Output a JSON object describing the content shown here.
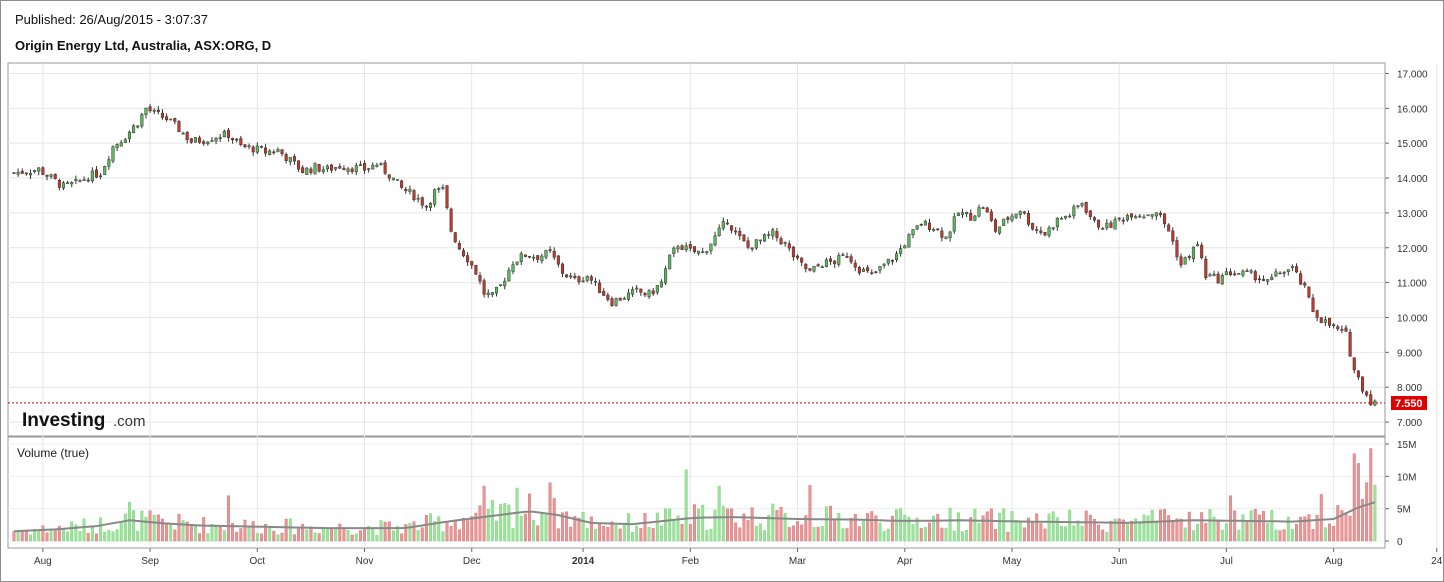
{
  "header": {
    "published": "Published: 26/Aug/2015 - 3:07:37",
    "title": "Origin Energy Ltd, Australia, ASX:ORG, D"
  },
  "logo": {
    "brand": "Investing",
    "suffix": ".com"
  },
  "volume_label": "Volume (true)",
  "current_price": "7.550",
  "colors": {
    "up": "#5cb85c",
    "down": "#c0392b",
    "vol_up": "#9be39b",
    "vol_down": "#e89696",
    "price_line": "#cc0000",
    "ma": "#888888"
  },
  "chart_data": {
    "type": "candlestick",
    "price_axis": {
      "ylim": [
        6.6,
        17.3
      ],
      "ticks": [
        "7.000",
        "8.000",
        "9.000",
        "10.000",
        "11.000",
        "12.000",
        "13.000",
        "14.000",
        "15.000",
        "16.000",
        "17.000"
      ]
    },
    "volume_axis": {
      "ylim": [
        0,
        15
      ],
      "unit": "M",
      "ticks": [
        "0",
        "5M",
        "10M",
        "15M"
      ]
    },
    "x_labels": [
      {
        "label": "Aug",
        "bold": false
      },
      {
        "label": "Sep",
        "bold": false
      },
      {
        "label": "Oct",
        "bold": false
      },
      {
        "label": "Nov",
        "bold": false
      },
      {
        "label": "Dec",
        "bold": false
      },
      {
        "label": "2014",
        "bold": true
      },
      {
        "label": "Feb",
        "bold": false
      },
      {
        "label": "Mar",
        "bold": false
      },
      {
        "label": "Apr",
        "bold": false
      },
      {
        "label": "May",
        "bold": false
      },
      {
        "label": "Jun",
        "bold": false
      },
      {
        "label": "Jul",
        "bold": false
      },
      {
        "label": "Aug",
        "bold": false
      },
      {
        "label": "24",
        "bold": false
      }
    ],
    "x_label_bar_index": [
      7,
      33,
      59,
      85,
      111,
      138,
      164,
      190,
      216,
      242,
      268,
      294,
      320,
      345
    ],
    "close_path": [
      [
        0,
        14.15
      ],
      [
        3,
        14.2
      ],
      [
        6,
        14.25
      ],
      [
        9,
        14.0
      ],
      [
        12,
        13.75
      ],
      [
        15,
        13.85
      ],
      [
        18,
        14.05
      ],
      [
        21,
        14.15
      ],
      [
        24,
        14.9
      ],
      [
        27,
        15.2
      ],
      [
        30,
        15.6
      ],
      [
        32,
        16.0
      ],
      [
        34,
        15.85
      ],
      [
        37,
        15.7
      ],
      [
        40,
        15.4
      ],
      [
        43,
        15.05
      ],
      [
        46,
        15.1
      ],
      [
        49,
        15.2
      ],
      [
        52,
        15.25
      ],
      [
        55,
        14.9
      ],
      [
        58,
        14.85
      ],
      [
        61,
        14.75
      ],
      [
        64,
        14.8
      ],
      [
        67,
        14.5
      ],
      [
        70,
        14.2
      ],
      [
        73,
        14.3
      ],
      [
        76,
        14.25
      ],
      [
        79,
        14.35
      ],
      [
        82,
        14.3
      ],
      [
        85,
        14.25
      ],
      [
        88,
        14.4
      ],
      [
        91,
        14.1
      ],
      [
        94,
        13.7
      ],
      [
        97,
        13.5
      ],
      [
        100,
        13.2
      ],
      [
        102,
        13.6
      ],
      [
        104,
        13.65
      ],
      [
        106,
        12.5
      ],
      [
        108,
        12.0
      ],
      [
        110,
        11.7
      ],
      [
        112,
        11.3
      ],
      [
        114,
        10.7
      ],
      [
        116,
        10.6
      ],
      [
        118,
        10.9
      ],
      [
        121,
        11.6
      ],
      [
        124,
        11.8
      ],
      [
        127,
        11.75
      ],
      [
        130,
        11.85
      ],
      [
        133,
        11.3
      ],
      [
        136,
        11.05
      ],
      [
        139,
        11.2
      ],
      [
        142,
        10.8
      ],
      [
        145,
        10.45
      ],
      [
        148,
        10.6
      ],
      [
        151,
        10.75
      ],
      [
        154,
        10.65
      ],
      [
        157,
        11.0
      ],
      [
        159,
        11.7
      ],
      [
        161,
        12.1
      ],
      [
        164,
        11.9
      ],
      [
        167,
        11.85
      ],
      [
        170,
        12.3
      ],
      [
        173,
        12.8
      ],
      [
        175,
        12.4
      ],
      [
        178,
        12.0
      ],
      [
        181,
        12.2
      ],
      [
        184,
        12.4
      ],
      [
        187,
        12.1
      ],
      [
        190,
        11.6
      ],
      [
        193,
        11.3
      ],
      [
        196,
        11.55
      ],
      [
        199,
        11.6
      ],
      [
        202,
        11.8
      ],
      [
        205,
        11.4
      ],
      [
        208,
        11.2
      ],
      [
        211,
        11.5
      ],
      [
        214,
        11.8
      ],
      [
        217,
        12.3
      ],
      [
        220,
        12.7
      ],
      [
        223,
        12.6
      ],
      [
        226,
        12.3
      ],
      [
        229,
        13.0
      ],
      [
        232,
        12.9
      ],
      [
        235,
        13.2
      ],
      [
        238,
        12.5
      ],
      [
        241,
        12.85
      ],
      [
        244,
        13.1
      ],
      [
        247,
        12.6
      ],
      [
        250,
        12.4
      ],
      [
        253,
        12.8
      ],
      [
        256,
        12.95
      ],
      [
        259,
        13.3
      ],
      [
        262,
        12.7
      ],
      [
        265,
        12.6
      ],
      [
        268,
        12.8
      ],
      [
        271,
        13.0
      ],
      [
        274,
        12.95
      ],
      [
        277,
        13.05
      ],
      [
        280,
        12.5
      ],
      [
        283,
        11.5
      ],
      [
        285,
        11.8
      ],
      [
        287,
        12.1
      ],
      [
        289,
        11.2
      ],
      [
        292,
        11.1
      ],
      [
        295,
        11.3
      ],
      [
        298,
        11.25
      ],
      [
        301,
        11.2
      ],
      [
        304,
        11.0
      ],
      [
        307,
        11.3
      ],
      [
        310,
        11.4
      ],
      [
        313,
        10.8
      ],
      [
        315,
        10.2
      ],
      [
        317,
        9.95
      ],
      [
        320,
        9.7
      ],
      [
        323,
        9.5
      ],
      [
        325,
        8.5
      ],
      [
        327,
        8.0
      ],
      [
        329,
        7.6
      ],
      [
        330,
        7.55
      ]
    ],
    "volume_path": [
      [
        0,
        1.5
      ],
      [
        10,
        1.8
      ],
      [
        20,
        2.3
      ],
      [
        28,
        3.2
      ],
      [
        35,
        2.8
      ],
      [
        45,
        2.4
      ],
      [
        60,
        2.2
      ],
      [
        75,
        2.0
      ],
      [
        95,
        2.0
      ],
      [
        105,
        3.0
      ],
      [
        115,
        3.8
      ],
      [
        125,
        4.6
      ],
      [
        132,
        4.0
      ],
      [
        140,
        2.8
      ],
      [
        150,
        2.6
      ],
      [
        165,
        3.6
      ],
      [
        175,
        3.7
      ],
      [
        190,
        3.4
      ],
      [
        205,
        3.3
      ],
      [
        215,
        3.1
      ],
      [
        230,
        3.2
      ],
      [
        245,
        3.0
      ],
      [
        260,
        2.9
      ],
      [
        270,
        2.8
      ],
      [
        285,
        3.2
      ],
      [
        300,
        3.1
      ],
      [
        310,
        3.0
      ],
      [
        320,
        3.4
      ],
      [
        326,
        5.2
      ],
      [
        330,
        6.0
      ]
    ],
    "volume_spikes": {
      "28": 6,
      "52": 7,
      "114": 8.5,
      "122": 8.2,
      "130": 9,
      "163": 11,
      "171": 8.5,
      "193": 8.6,
      "295": 7,
      "317": 7.2,
      "325": 13.5,
      "326": 12,
      "328": 9,
      "329": 14.3
    }
  }
}
